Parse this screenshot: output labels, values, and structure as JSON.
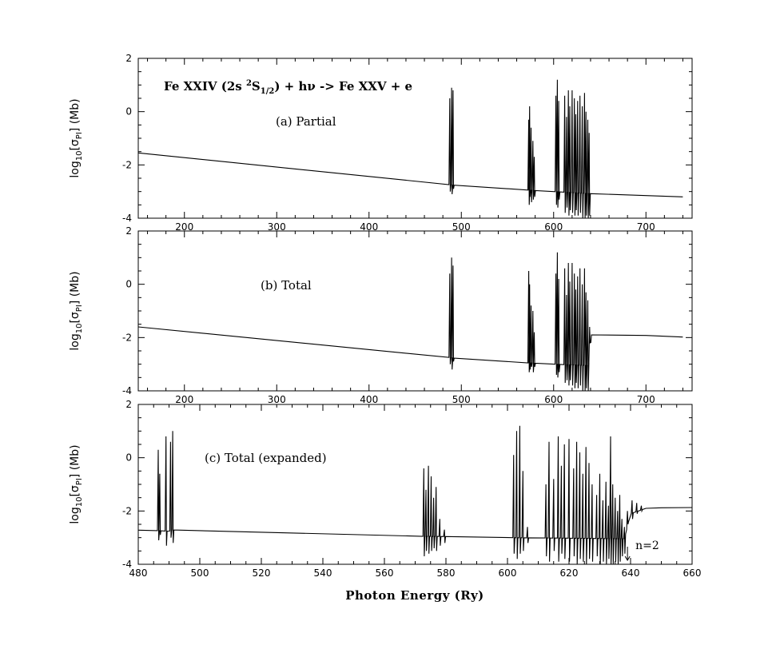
{
  "chart_data": [
    {
      "panel": "a",
      "type": "line",
      "title": "Fe XXIV (2s ²S1/2) + hν -> Fe XXV + e",
      "label": "(a) Partial",
      "xlabel": "",
      "ylabel": "log10[σPI] (Mb)",
      "xlim": [
        150,
        750
      ],
      "ylim": [
        -4,
        2
      ],
      "xticks": [
        200,
        300,
        400,
        500,
        600,
        700
      ],
      "yticks": [
        -4,
        -2,
        0,
        2
      ],
      "background": [
        [
          150,
          -1.55
        ],
        [
          200,
          -1.85
        ],
        [
          300,
          -2.2
        ],
        [
          400,
          -2.5
        ],
        [
          480,
          -2.72
        ],
        [
          490,
          -2.75
        ],
        [
          500,
          -2.8
        ],
        [
          560,
          -2.92
        ],
        [
          600,
          -3.0
        ],
        [
          640,
          -3.08
        ],
        [
          700,
          -3.15
        ],
        [
          740,
          -3.2
        ]
      ],
      "resonances": [
        {
          "x": 487.5,
          "hi": 0.5,
          "lo": -3.0
        },
        {
          "x": 489.5,
          "hi": 0.9,
          "lo": -3.1
        },
        {
          "x": 491.0,
          "hi": 0.8,
          "lo": -2.9
        },
        {
          "x": 573.0,
          "hi": -0.3,
          "lo": -3.5
        },
        {
          "x": 574.0,
          "hi": 0.2,
          "lo": -3.2
        },
        {
          "x": 575.5,
          "hi": -0.6,
          "lo": -3.4
        },
        {
          "x": 577.5,
          "hi": -1.1,
          "lo": -3.3
        },
        {
          "x": 579.0,
          "hi": -1.7,
          "lo": -3.2
        },
        {
          "x": 602.5,
          "hi": 0.6,
          "lo": -3.5
        },
        {
          "x": 604.0,
          "hi": 1.2,
          "lo": -3.6
        },
        {
          "x": 605.5,
          "hi": 0.4,
          "lo": -3.3
        },
        {
          "x": 612.0,
          "hi": 0.6,
          "lo": -3.8
        },
        {
          "x": 614.0,
          "hi": -0.2,
          "lo": -3.6
        },
        {
          "x": 616.0,
          "hi": 0.8,
          "lo": -3.9
        },
        {
          "x": 617.5,
          "hi": 0.2,
          "lo": -3.7
        },
        {
          "x": 620.0,
          "hi": 0.8,
          "lo": -3.8
        },
        {
          "x": 622.5,
          "hi": 0.5,
          "lo": -3.9
        },
        {
          "x": 624.0,
          "hi": -0.1,
          "lo": -3.7
        },
        {
          "x": 626.0,
          "hi": 0.4,
          "lo": -3.9
        },
        {
          "x": 628.5,
          "hi": 0.6,
          "lo": -3.8
        },
        {
          "x": 631.0,
          "hi": 0.2,
          "lo": -4.0
        },
        {
          "x": 633.5,
          "hi": 0.7,
          "lo": -4.0
        },
        {
          "x": 635.0,
          "hi": 0.0,
          "lo": -3.9
        },
        {
          "x": 637.0,
          "hi": -0.3,
          "lo": -4.0
        },
        {
          "x": 638.5,
          "hi": -0.8,
          "lo": -3.9
        }
      ]
    },
    {
      "panel": "b",
      "type": "line",
      "label": "(b) Total",
      "xlabel": "",
      "ylabel": "log10[σPI] (Mb)",
      "xlim": [
        150,
        750
      ],
      "ylim": [
        -4,
        2
      ],
      "xticks": [
        200,
        300,
        400,
        500,
        600,
        700
      ],
      "yticks": [
        -4,
        -2,
        0,
        2
      ],
      "background": [
        [
          150,
          -1.6
        ],
        [
          200,
          -1.88
        ],
        [
          300,
          -2.22
        ],
        [
          400,
          -2.52
        ],
        [
          480,
          -2.72
        ],
        [
          490,
          -2.76
        ],
        [
          500,
          -2.82
        ],
        [
          560,
          -2.93
        ],
        [
          600,
          -3.0
        ],
        [
          638,
          -3.05
        ],
        [
          641,
          -1.9
        ],
        [
          700,
          -1.92
        ],
        [
          740,
          -1.98
        ]
      ],
      "resonances": [
        {
          "x": 487.5,
          "hi": 0.4,
          "lo": -3.0
        },
        {
          "x": 489.5,
          "hi": 1.0,
          "lo": -3.2
        },
        {
          "x": 491.0,
          "hi": 0.7,
          "lo": -2.9
        },
        {
          "x": 573.0,
          "hi": 0.5,
          "lo": -3.3
        },
        {
          "x": 574.0,
          "hi": 0.0,
          "lo": -3.2
        },
        {
          "x": 575.5,
          "hi": -0.8,
          "lo": -3.1
        },
        {
          "x": 577.5,
          "hi": -1.0,
          "lo": -3.3
        },
        {
          "x": 579.0,
          "hi": -1.8,
          "lo": -3.1
        },
        {
          "x": 602.5,
          "hi": 0.4,
          "lo": -3.4
        },
        {
          "x": 604.0,
          "hi": 1.2,
          "lo": -3.5
        },
        {
          "x": 605.5,
          "hi": 0.2,
          "lo": -3.3
        },
        {
          "x": 612.0,
          "hi": 0.6,
          "lo": -3.7
        },
        {
          "x": 614.0,
          "hi": -0.4,
          "lo": -3.6
        },
        {
          "x": 616.0,
          "hi": 0.8,
          "lo": -3.8
        },
        {
          "x": 617.5,
          "hi": 0.1,
          "lo": -3.6
        },
        {
          "x": 620.0,
          "hi": 0.8,
          "lo": -3.8
        },
        {
          "x": 622.5,
          "hi": 0.4,
          "lo": -3.9
        },
        {
          "x": 624.0,
          "hi": -0.2,
          "lo": -3.7
        },
        {
          "x": 626.0,
          "hi": 0.3,
          "lo": -3.9
        },
        {
          "x": 628.5,
          "hi": 0.6,
          "lo": -3.8
        },
        {
          "x": 631.0,
          "hi": 0.0,
          "lo": -4.0
        },
        {
          "x": 633.5,
          "hi": 0.6,
          "lo": -4.0
        },
        {
          "x": 635.0,
          "hi": -0.3,
          "lo": -3.9
        },
        {
          "x": 637.0,
          "hi": -0.6,
          "lo": -4.0
        },
        {
          "x": 639.0,
          "hi": -1.6,
          "lo": -2.2
        }
      ]
    },
    {
      "panel": "c",
      "type": "line",
      "label": "(c) Total (expanded)",
      "xlabel": "Photon Energy (Ry)",
      "ylabel": "log10[σPI] (Mb)",
      "xlim": [
        480,
        660
      ],
      "ylim": [
        -4,
        2
      ],
      "xticks": [
        480,
        500,
        520,
        540,
        560,
        580,
        600,
        620,
        640,
        660
      ],
      "yticks": [
        -4,
        -2,
        0,
        2
      ],
      "annotation": "n=2",
      "annotation_x": 639,
      "background": [
        [
          480,
          -2.72
        ],
        [
          487,
          -2.74
        ],
        [
          490,
          -2.76
        ],
        [
          492,
          -2.7
        ],
        [
          494,
          -2.82
        ],
        [
          500,
          -2.84
        ],
        [
          520,
          -2.87
        ],
        [
          540,
          -2.9
        ],
        [
          560,
          -2.93
        ],
        [
          572,
          -2.95
        ],
        [
          580,
          -2.96
        ],
        [
          600,
          -3.0
        ],
        [
          620,
          -3.02
        ],
        [
          638,
          -3.04
        ],
        [
          640,
          -2.1
        ],
        [
          645,
          -1.9
        ],
        [
          650,
          -1.88
        ],
        [
          660,
          -1.87
        ]
      ],
      "resonances": [
        {
          "x": 486.5,
          "hi": 0.3,
          "lo": -3.1
        },
        {
          "x": 487.0,
          "hi": -0.6,
          "lo": -2.9
        },
        {
          "x": 489.0,
          "hi": 0.8,
          "lo": -3.3
        },
        {
          "x": 490.5,
          "hi": 0.6,
          "lo": -3.0
        },
        {
          "x": 491.2,
          "hi": 1.0,
          "lo": -3.2
        },
        {
          "x": 572.8,
          "hi": -0.4,
          "lo": -3.7
        },
        {
          "x": 573.5,
          "hi": -1.2,
          "lo": -3.5
        },
        {
          "x": 574.3,
          "hi": -0.3,
          "lo": -3.6
        },
        {
          "x": 575.2,
          "hi": -0.7,
          "lo": -3.5
        },
        {
          "x": 576.0,
          "hi": -1.5,
          "lo": -3.4
        },
        {
          "x": 576.8,
          "hi": -1.1,
          "lo": -3.5
        },
        {
          "x": 578.0,
          "hi": -2.3,
          "lo": -3.3
        },
        {
          "x": 579.5,
          "hi": -2.7,
          "lo": -3.2
        },
        {
          "x": 602.0,
          "hi": 0.1,
          "lo": -3.6
        },
        {
          "x": 603.0,
          "hi": 1.0,
          "lo": -3.8
        },
        {
          "x": 604.0,
          "hi": 1.2,
          "lo": -3.6
        },
        {
          "x": 605.0,
          "hi": -0.5,
          "lo": -3.5
        },
        {
          "x": 606.5,
          "hi": -2.6,
          "lo": -3.2
        },
        {
          "x": 612.5,
          "hi": -1.0,
          "lo": -3.7
        },
        {
          "x": 613.5,
          "hi": 0.6,
          "lo": -3.9
        },
        {
          "x": 615.0,
          "hi": -0.8,
          "lo": -3.5
        },
        {
          "x": 616.5,
          "hi": 0.8,
          "lo": -3.9
        },
        {
          "x": 617.5,
          "hi": -0.3,
          "lo": -3.6
        },
        {
          "x": 618.5,
          "hi": 0.5,
          "lo": -3.8
        },
        {
          "x": 620.0,
          "hi": 0.7,
          "lo": -3.9
        },
        {
          "x": 621.5,
          "hi": -0.4,
          "lo": -3.7
        },
        {
          "x": 622.5,
          "hi": 0.6,
          "lo": -4.0
        },
        {
          "x": 623.5,
          "hi": 0.2,
          "lo": -3.8
        },
        {
          "x": 624.5,
          "hi": -0.6,
          "lo": -3.9
        },
        {
          "x": 625.5,
          "hi": 0.4,
          "lo": -4.0
        },
        {
          "x": 626.5,
          "hi": -0.2,
          "lo": -3.8
        },
        {
          "x": 627.5,
          "hi": -1.0,
          "lo": -3.9
        },
        {
          "x": 629.0,
          "hi": -1.4,
          "lo": -3.7
        },
        {
          "x": 630.0,
          "hi": -0.6,
          "lo": -4.0
        },
        {
          "x": 631.0,
          "hi": -1.6,
          "lo": -3.9
        },
        {
          "x": 632.0,
          "hi": -0.9,
          "lo": -4.0
        },
        {
          "x": 632.8,
          "hi": -1.8,
          "lo": -3.8
        },
        {
          "x": 633.5,
          "hi": 0.8,
          "lo": -4.0
        },
        {
          "x": 634.2,
          "hi": -1.0,
          "lo": -4.0
        },
        {
          "x": 635.0,
          "hi": -1.5,
          "lo": -3.9
        },
        {
          "x": 635.8,
          "hi": -2.0,
          "lo": -4.0
        },
        {
          "x": 636.5,
          "hi": -1.4,
          "lo": -3.9
        },
        {
          "x": 637.2,
          "hi": -2.3,
          "lo": -3.7
        },
        {
          "x": 638.0,
          "hi": -2.6,
          "lo": -3.6
        },
        {
          "x": 639.0,
          "hi": -2.0,
          "lo": -2.5
        },
        {
          "x": 640.5,
          "hi": -1.6,
          "lo": -2.3
        },
        {
          "x": 642.0,
          "hi": -1.7,
          "lo": -2.1
        },
        {
          "x": 643.5,
          "hi": -1.8,
          "lo": -2.0
        }
      ]
    }
  ]
}
